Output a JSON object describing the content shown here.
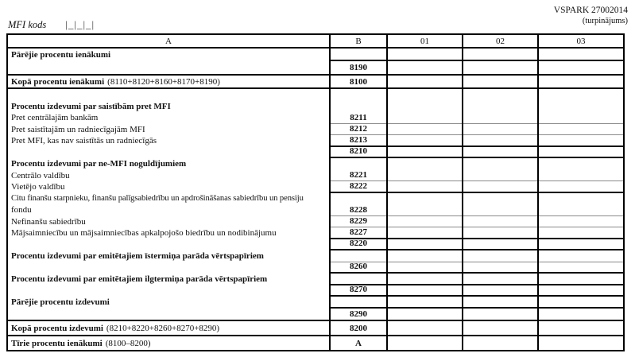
{
  "page": {
    "form_code": "VSPARK 27002014",
    "continuation_note": "(turpinājums)",
    "mfi_code_label": "MFI kods",
    "mfi_code_boxes": "|_|_|_|"
  },
  "table": {
    "col_headers": [
      "A",
      "B",
      "01",
      "02",
      "03"
    ],
    "other_income": {
      "label": "Pārējie procentu ienākumi",
      "code": "8190"
    },
    "income_total": {
      "label": "Kopā procentu ienākumi",
      "formula": "(8110+8120+8160+8170+8190)",
      "code": "8100"
    },
    "middle": {
      "a_lines": [
        "",
        "Procentu izdevumi par saistībām pret MFI",
        "Pret centrālajām bankām",
        "Pret saistītajām un radniecīgajām MFI",
        "Pret MFI, kas nav saistītās un radniecīgās",
        "",
        "Procentu izdevumi par ne-MFI noguldījumiem",
        "Centrālo valdību",
        "Vietējo valdību",
        "Citu finanšu starpnieku, finanšu palīgsabiedrību un apdrošināšanas sabiedrību un pensiju",
        "fondu",
        "Nefinanšu sabiedrību",
        "Mājsaimniecību un mājsaimniecības apkalpojošo biedrību un nodibinājumu",
        "",
        "Procentu izdevumi par emitētajiem īstermiņa parāda vērtspapīriem",
        "",
        "Procentu izdevumi par emitētajiem ilgtermiņa parāda vērtspapīriem",
        "",
        "Pārējie procentu izdevumi",
        ""
      ],
      "b_cells": [
        "8211",
        "8212",
        "8213",
        "8210",
        "8221",
        "8222",
        "8228",
        "8229",
        "8227",
        "8220",
        "",
        "8260",
        "",
        "8270",
        "",
        "8290"
      ]
    },
    "expense_total": {
      "label": "Kopā procentu izdevumi",
      "formula": "(8210+8220+8260+8270+8290)",
      "code": "8200"
    },
    "net_income": {
      "label": "Tīrie procentu ienākumi",
      "formula": "(8100–8200)",
      "code": "A"
    }
  }
}
